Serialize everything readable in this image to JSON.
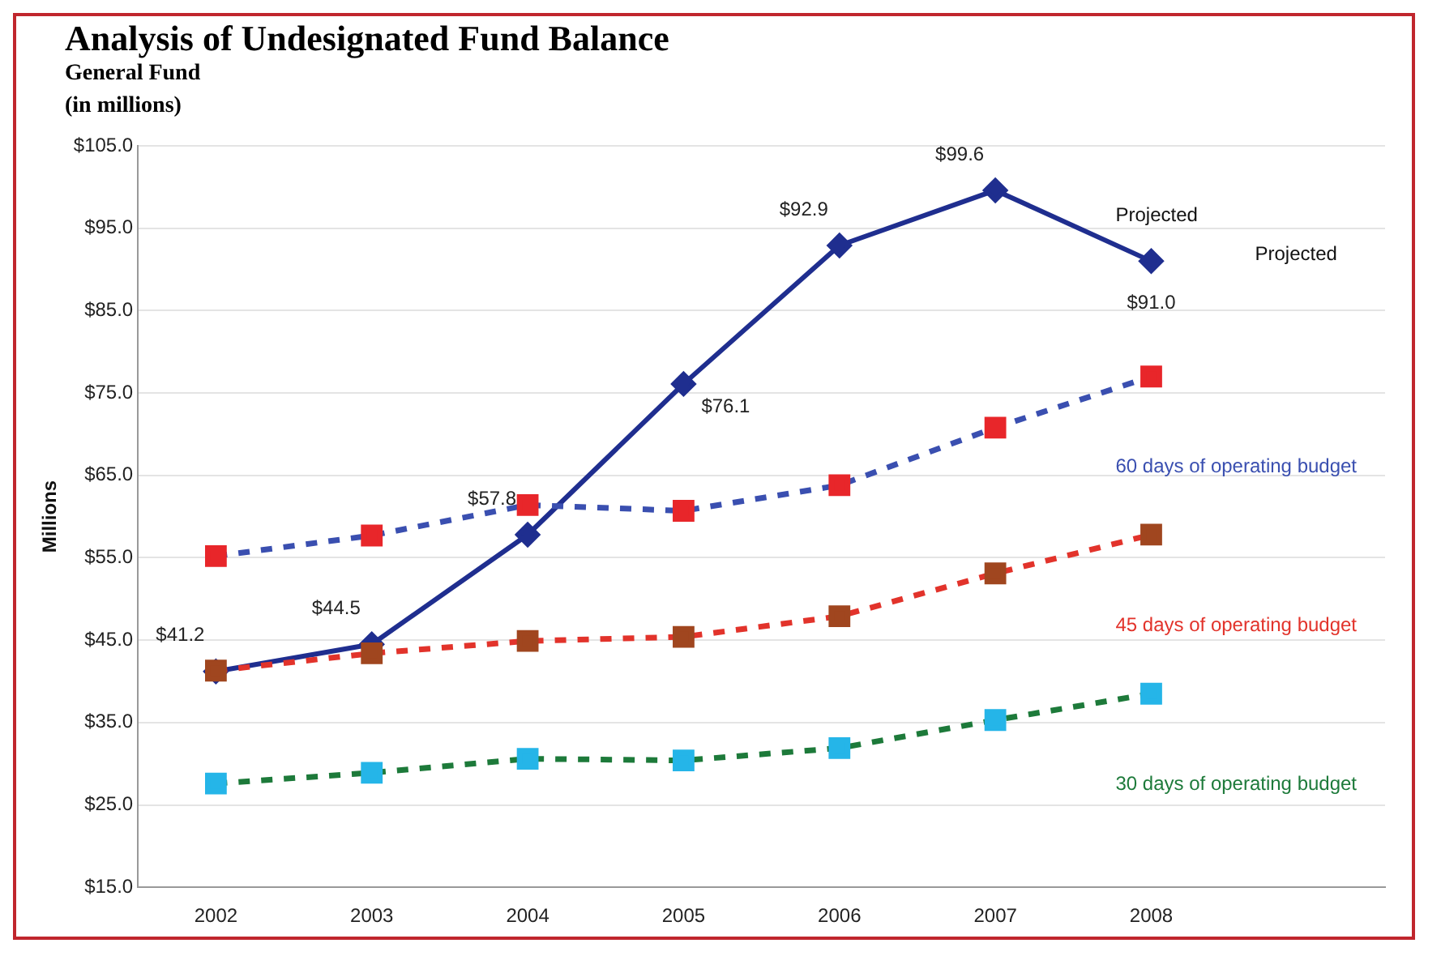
{
  "chart_data": {
    "type": "line",
    "title": "Analysis of Undesignated Fund Balance",
    "subtitle": "General Fund\n(in millions)",
    "ylabel": "Millions",
    "categories": [
      "2002",
      "2003",
      "2004",
      "2005",
      "2006",
      "2007",
      "2008",
      null
    ],
    "series": [
      {
        "color": "#1f2e8f",
        "marker": "diamond",
        "line_style": "solid",
        "values": [
          41.2,
          44.5,
          57.8,
          76.1,
          92.9,
          99.6,
          91.0,
          null
        ],
        "value_labels": [
          "$41.2",
          "$44.5",
          "$57.8",
          "$76.1",
          "$92.9",
          "$99.6",
          "$91.0",
          null
        ]
      },
      {
        "name": "60 days of operating budget",
        "color": "#3a4fb0",
        "colors": [
          "#e8262a",
          "#e8262a",
          "#e8262a",
          "#e8262a",
          "#e8262a",
          "#e8262a",
          "#e8262a",
          "#e8262a"
        ],
        "marker": "square",
        "line_style": "dashed",
        "values": [
          55.2,
          57.7,
          61.4,
          60.7,
          63.8,
          70.8,
          77.0,
          null
        ]
      },
      {
        "name": "45 days of operating budget",
        "color": "#e2332b",
        "colors": [
          "#a0461f",
          "#a0461f",
          "#a0461f",
          "#a0461f",
          "#a0461f",
          "#a0461f",
          "#a0461f",
          "#a0461f"
        ],
        "marker": "square",
        "line_style": "dashed",
        "values": [
          41.3,
          43.4,
          44.9,
          45.4,
          47.9,
          53.1,
          57.8,
          null
        ]
      },
      {
        "name": "30 days of operating budget",
        "color": "#1d7a3a",
        "colors": [
          "#25b5e8",
          "#25b5e8",
          "#25b5e8",
          "#25b5e8",
          "#25b5e8",
          "#25b5e8",
          "#25b5e8",
          "#25b5e8"
        ],
        "marker": "square",
        "line_style": "dashed",
        "values": [
          27.6,
          28.9,
          30.6,
          30.4,
          31.9,
          35.3,
          38.5,
          null
        ]
      }
    ],
    "annotations": [
      "Projected",
      "Projected"
    ],
    "ylim": [
      15,
      105
    ],
    "yticks": [
      {
        "value": 15,
        "label": "$15.0"
      },
      {
        "value": 25,
        "label": "$25.0"
      },
      {
        "value": 35,
        "label": "$35.0"
      },
      {
        "value": 45,
        "label": "$45.0"
      },
      {
        "value": 55,
        "label": "$55.0"
      },
      {
        "value": 65,
        "label": "$65.0"
      },
      {
        "value": 75,
        "label": "$75.0"
      },
      {
        "value": 85,
        "label": "$85.0"
      },
      {
        "value": 95,
        "label": "$95.0"
      },
      {
        "value": 105,
        "label": "$105.0"
      }
    ],
    "grid": "y",
    "legend": false
  }
}
